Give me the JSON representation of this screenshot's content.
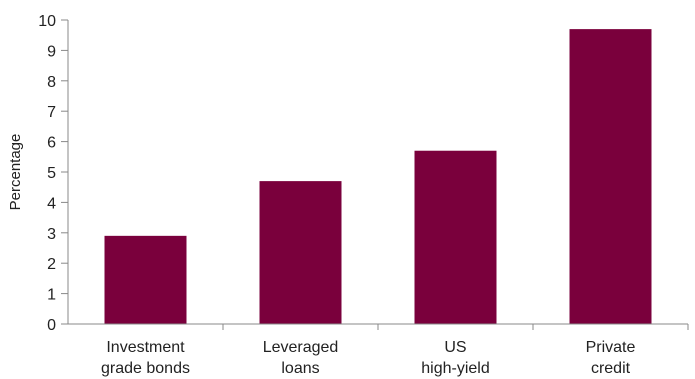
{
  "chart_data": {
    "type": "bar",
    "categories": [
      [
        "Investment",
        "grade bonds"
      ],
      [
        "Leveraged",
        "loans"
      ],
      [
        "US",
        "high-yield"
      ],
      [
        "Private",
        "credit"
      ]
    ],
    "values": [
      2.9,
      4.7,
      5.7,
      9.7
    ],
    "title": "",
    "xlabel": "",
    "ylabel": "Percentage",
    "ylim": [
      0,
      10
    ],
    "yticks": [
      "0",
      "1",
      "2",
      "3",
      "4",
      "5",
      "6",
      "7",
      "8",
      "9",
      "10"
    ],
    "grid": false,
    "colors": {
      "bar": "#7A003C",
      "axis": "#888888",
      "text": "#222222"
    }
  }
}
